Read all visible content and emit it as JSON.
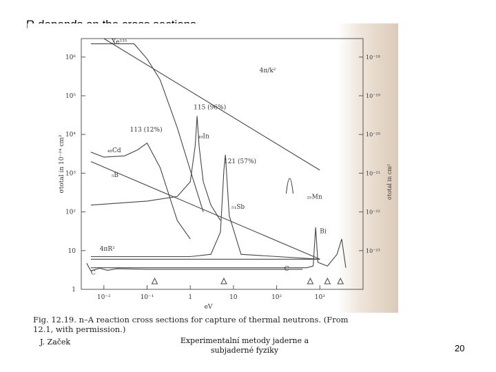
{
  "slide": {
    "title": "R depends on the cross sections",
    "page_number": "20"
  },
  "figure": {
    "caption_line1": "Fig. 12.19.   n–A reaction cross sections for capture of thermal neutrons. (From",
    "caption_line2": "12.1, with permission.)",
    "author": "J. Začek",
    "course_line1": "Experimentalní metody jaderne a",
    "course_line2": "subjaderné fyziky"
  },
  "chart_data": {
    "type": "line",
    "xlabel": "eV",
    "ylabel_left": "σtotal in 10⁻²⁴ cm²",
    "ylabel_right": "σtotal in cm²",
    "x_scale": "log",
    "y_scale": "log",
    "xlim": [
      0.003,
      10000
    ],
    "ylim": [
      1,
      3000000
    ],
    "x_ticks": [
      {
        "value": 0.01,
        "label": "10⁻²"
      },
      {
        "value": 0.1,
        "label": "10⁻¹"
      },
      {
        "value": 1,
        "label": "1"
      },
      {
        "value": 10,
        "label": "10"
      },
      {
        "value": 100,
        "label": "10²"
      },
      {
        "value": 1000,
        "label": "10³"
      }
    ],
    "y_ticks_left": [
      {
        "value": 1,
        "label": "1"
      },
      {
        "value": 10,
        "label": "10"
      },
      {
        "value": 100,
        "label": "10²"
      },
      {
        "value": 1000,
        "label": "10³"
      },
      {
        "value": 10000,
        "label": "10⁴"
      },
      {
        "value": 100000,
        "label": "10⁵"
      },
      {
        "value": 1000000,
        "label": "10⁶"
      }
    ],
    "y_ticks_right": [
      {
        "value": 10,
        "label": "10⁻²³"
      },
      {
        "value": 100,
        "label": "10⁻²²"
      },
      {
        "value": 1000,
        "label": "10⁻²¹"
      },
      {
        "value": 10000,
        "label": "10⁻²⁰"
      },
      {
        "value": 100000,
        "label": "10⁻¹⁹"
      },
      {
        "value": 1000000,
        "label": "10⁻¹⁸"
      }
    ],
    "series": [
      {
        "name": "Xe¹³⁵",
        "label_x": 0.015,
        "label_y": 2200000,
        "x": [
          0.005,
          0.02,
          0.05,
          0.1,
          0.2,
          0.5,
          1,
          2
        ],
        "y": [
          2200000,
          2200000,
          2200000,
          900000,
          260000,
          15000,
          1200,
          100
        ]
      },
      {
        "name": "4π/k²",
        "label_x": 40,
        "label_y": 400000,
        "x": [
          0.01,
          1000
        ],
        "y": [
          3000000,
          1200
        ]
      },
      {
        "name": "₄₈Cd",
        "label_x": 0.012,
        "label_y": 3500,
        "x": [
          0.005,
          0.01,
          0.03,
          0.06,
          0.1,
          0.2,
          0.5,
          1
        ],
        "y": [
          3500,
          2600,
          2800,
          4000,
          6000,
          1400,
          60,
          20
        ]
      },
      {
        "name": "113 (12%)",
        "label_x": 0.04,
        "label_y": 12000,
        "x": [],
        "y": []
      },
      {
        "name": "₅B",
        "label_x": 0.015,
        "label_y": 800,
        "x": [
          0.005,
          1000
        ],
        "y": [
          2000,
          6
        ]
      },
      {
        "name": "₄₉In",
        "label_x": 1.5,
        "label_y": 8000,
        "x": [
          0.005,
          0.1,
          0.5,
          1,
          1.3,
          1.44,
          1.6,
          2,
          3,
          5
        ],
        "y": [
          150,
          190,
          250,
          600,
          5000,
          30000,
          5000,
          600,
          150,
          60
        ]
      },
      {
        "name": "115 (96%)",
        "label_x": 1.2,
        "label_y": 45000,
        "x": [],
        "y": []
      },
      {
        "name": "₅₁Sb",
        "label_x": 9,
        "label_y": 120,
        "x": [
          0.005,
          0.1,
          1,
          3,
          5,
          6,
          6.5,
          8,
          15,
          1000
        ],
        "y": [
          7,
          7,
          7,
          8,
          30,
          1200,
          3000,
          80,
          8,
          6
        ]
      },
      {
        "name": "121 (57%)",
        "label_x": 6,
        "label_y": 1800,
        "x": [],
        "y": []
      },
      {
        "name": "₂₅Mn",
        "label_x": 500,
        "label_y": 220,
        "x": [],
        "y": []
      },
      {
        "name": "Bi",
        "label_x": 1000,
        "label_y": 28,
        "x": [
          0.005,
          0.1,
          10,
          500,
          700,
          800,
          900,
          1500,
          2500,
          3200,
          4000
        ],
        "y": [
          3.6,
          3.6,
          3.6,
          3.6,
          4,
          40,
          5,
          4,
          8,
          20,
          3.6
        ]
      },
      {
        "name": "4πR²",
        "label_x": 0.008,
        "label_y": 10,
        "x": [
          0.005,
          1000
        ],
        "y": [
          6,
          6
        ]
      },
      {
        "name": "C",
        "label_x": 0.005,
        "label_y": 2.4,
        "x": [
          0.004,
          0.005,
          0.008,
          0.012,
          0.02,
          0.1,
          1,
          10,
          100,
          400
        ],
        "y": [
          4.7,
          3,
          3.5,
          3.1,
          3.4,
          3.3,
          3.3,
          3.3,
          3.3,
          3.3
        ]
      }
    ],
    "peaks": [
      {
        "x": 200,
        "y": 1200,
        "note": "Mn resonance"
      }
    ],
    "triangle_markers": [
      {
        "x": 0.15
      },
      {
        "x": 6
      },
      {
        "x": 600
      },
      {
        "x": 1500
      },
      {
        "x": 3000
      }
    ],
    "annotations": [
      {
        "text": "C",
        "x": 150,
        "y": 3
      }
    ],
    "grid": false,
    "legend": "none"
  }
}
